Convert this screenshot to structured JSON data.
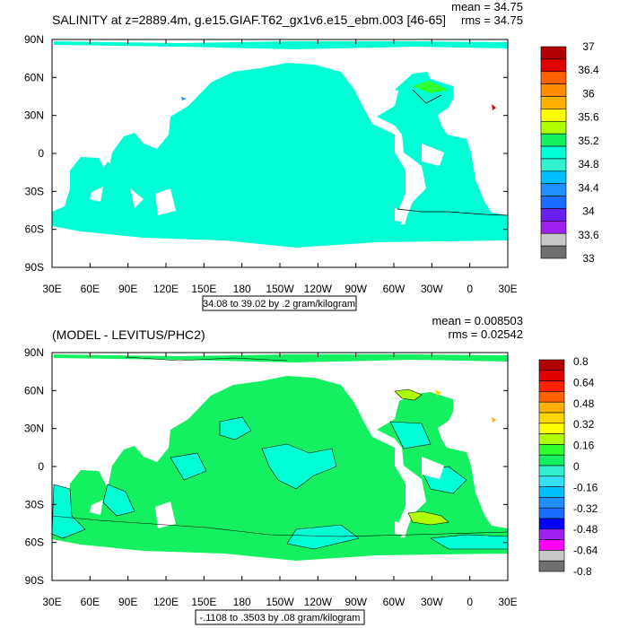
{
  "colors": {
    "land": "#ffffff",
    "frame": "#000000",
    "palette": [
      "#6f6f6f",
      "#c8c8c8",
      "#ff00ff",
      "#a020f0",
      "#6a1ff0",
      "#0000ff",
      "#1a6eff",
      "#1e90ff",
      "#00bfff",
      "#33e0ff",
      "#30f0d0",
      "#00ffd5",
      "#15f060",
      "#30ff30",
      "#b0ff00",
      "#ffff00",
      "#ffd700",
      "#ffb000",
      "#ff8c00",
      "#ff6000",
      "#ff2000",
      "#e00000",
      "#b00000"
    ]
  },
  "chart_data": [
    {
      "type": "heatmap",
      "title": "SALINITY at z=2889.4m, g.e15.GIAF.T62_gx1v6.e15_ebm.003 [46-65]",
      "stats": {
        "mean_label": "mean = 34.75",
        "rms_label": "rms = 34.75"
      },
      "contour_info": "34.08 to 39.02 by .2 gram/kilogram",
      "x_ticks": [
        "30E",
        "60E",
        "90E",
        "120E",
        "150E",
        "180",
        "150W",
        "120W",
        "90W",
        "60W",
        "30W",
        "0",
        "30E"
      ],
      "y_ticks": [
        "90N",
        "60N",
        "30N",
        "0",
        "30S",
        "60S",
        "90S"
      ],
      "xlim": [
        30,
        390
      ],
      "ylim": [
        -90,
        90
      ],
      "colorbar": {
        "labels": [
          "37",
          "36.4",
          "36",
          "35.6",
          "35.2",
          "34.8",
          "34.4",
          "34",
          "33.6",
          "33"
        ],
        "levels": 17,
        "dominant_value": 34.75
      }
    },
    {
      "type": "heatmap",
      "title": "(MODEL - LEVITUS/PHC2)",
      "stats": {
        "mean_label": "mean = 0.008503",
        "rms_label": "rms = 0.02542"
      },
      "contour_info": "-.1108 to .3503 by .08 gram/kilogram",
      "x_ticks": [
        "30E",
        "60E",
        "90E",
        "120E",
        "150E",
        "180",
        "150W",
        "120W",
        "90W",
        "60W",
        "30W",
        "0",
        "30E"
      ],
      "y_ticks": [
        "90N",
        "60N",
        "30N",
        "0",
        "30S",
        "60S",
        "90S"
      ],
      "xlim": [
        30,
        390
      ],
      "ylim": [
        -90,
        90
      ],
      "colorbar": {
        "labels": [
          "0.8",
          "0.64",
          "0.48",
          "0.32",
          "0.16",
          "0",
          "-0.16",
          "-0.32",
          "-0.48",
          "-0.64",
          "-0.8"
        ],
        "levels": 20,
        "dominant_value": 0.0
      }
    }
  ]
}
